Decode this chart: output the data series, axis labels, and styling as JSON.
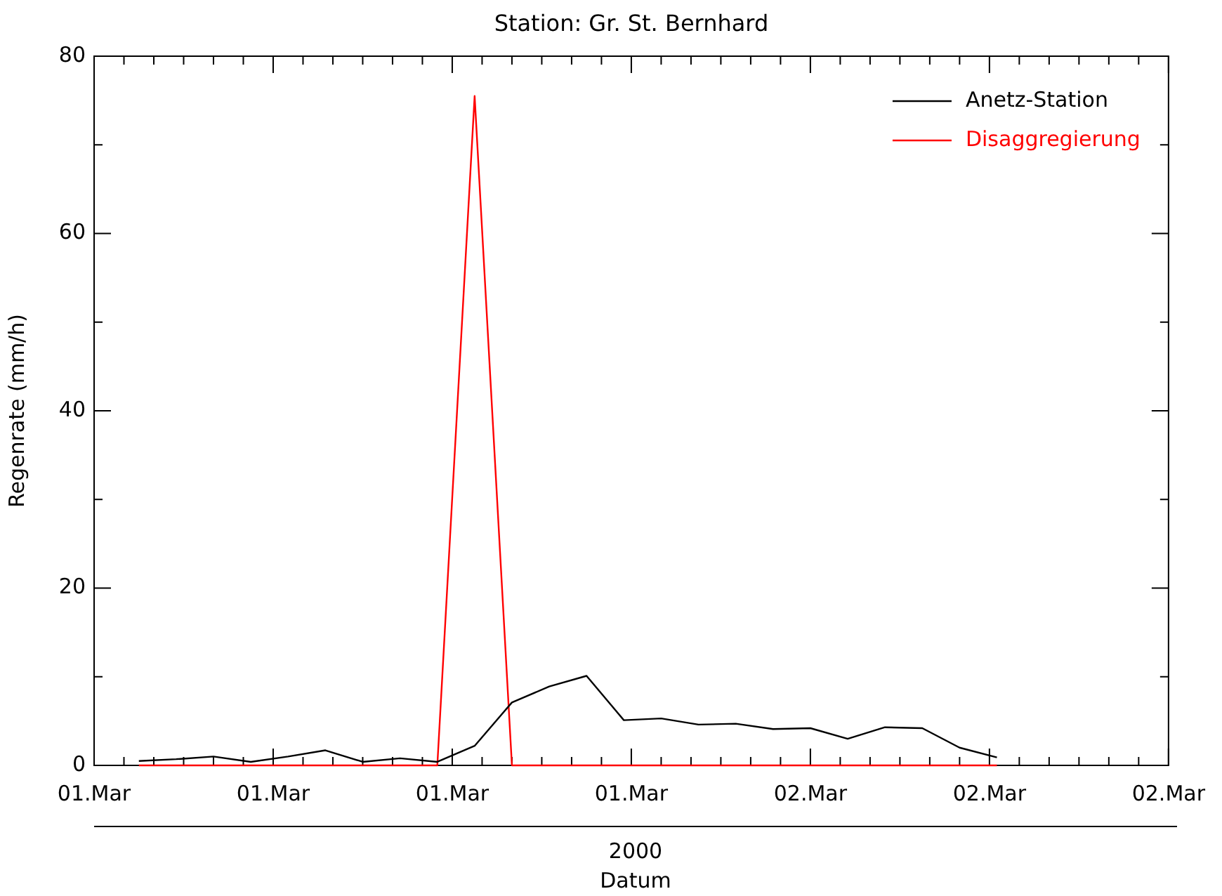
{
  "chart_data": {
    "type": "line",
    "title": "Station: Gr. St. Bernhard",
    "xlabel": "Datum",
    "ylabel": "Regenrate (mm/h)",
    "annotations": [
      "2000"
    ],
    "x": [
      "2000-03-01T04:30",
      "2000-03-01T05:45",
      "2000-03-01T07:00",
      "2000-03-01T08:15",
      "2000-03-01T09:30",
      "2000-03-01T10:45",
      "2000-03-01T12:00",
      "2000-03-01T13:15",
      "2000-03-01T14:30",
      "2000-03-01T15:45",
      "2000-03-01T17:00",
      "2000-03-01T18:15",
      "2000-03-01T19:30",
      "2000-03-01T20:45",
      "2000-03-01T22:00",
      "2000-03-01T23:15",
      "2000-03-02T00:30",
      "2000-03-02T01:45",
      "2000-03-02T03:00",
      "2000-03-02T04:15",
      "2000-03-02T05:30",
      "2000-03-02T06:45",
      "2000-03-02T08:00",
      "2000-03-02T09:15"
    ],
    "series": [
      {
        "name": "Anetz-Station",
        "color": "#000000",
        "values": [
          0.5,
          0.7,
          1.0,
          0.4,
          1.0,
          1.7,
          0.4,
          0.8,
          0.4,
          2.2,
          7.1,
          8.9,
          10.1,
          5.1,
          5.3,
          4.6,
          4.7,
          4.1,
          4.2,
          3.0,
          4.3,
          4.2,
          2.0,
          0.9
        ]
      },
      {
        "name": "Disaggregierung",
        "color": "#ff0000",
        "values": [
          0,
          0,
          0,
          0,
          0,
          0,
          0,
          0,
          0,
          75.5,
          0,
          0,
          0,
          0,
          0,
          0,
          0,
          0,
          0,
          0,
          0,
          0,
          0,
          0
        ]
      }
    ],
    "xlim": [
      "2000-03-01T03:00",
      "2000-03-02T15:00"
    ],
    "xticks": [
      {
        "value": "2000-03-01T03:00",
        "label": "01.Mar"
      },
      {
        "value": "2000-03-01T04:00",
        "label": null
      },
      {
        "value": "2000-03-01T05:00",
        "label": null
      },
      {
        "value": "2000-03-01T06:00",
        "label": null
      },
      {
        "value": "2000-03-01T07:00",
        "label": null
      },
      {
        "value": "2000-03-01T08:00",
        "label": null
      },
      {
        "value": "2000-03-01T09:00",
        "label": "01.Mar"
      },
      {
        "value": "2000-03-01T10:00",
        "label": null
      },
      {
        "value": "2000-03-01T11:00",
        "label": null
      },
      {
        "value": "2000-03-01T12:00",
        "label": null
      },
      {
        "value": "2000-03-01T13:00",
        "label": null
      },
      {
        "value": "2000-03-01T14:00",
        "label": null
      },
      {
        "value": "2000-03-01T15:00",
        "label": "01.Mar"
      },
      {
        "value": "2000-03-01T16:00",
        "label": null
      },
      {
        "value": "2000-03-01T17:00",
        "label": null
      },
      {
        "value": "2000-03-01T18:00",
        "label": null
      },
      {
        "value": "2000-03-01T19:00",
        "label": null
      },
      {
        "value": "2000-03-01T20:00",
        "label": null
      },
      {
        "value": "2000-03-01T21:00",
        "label": "01.Mar"
      },
      {
        "value": "2000-03-01T22:00",
        "label": null
      },
      {
        "value": "2000-03-01T23:00",
        "label": null
      },
      {
        "value": "2000-03-02T00:00",
        "label": null
      },
      {
        "value": "2000-03-02T01:00",
        "label": null
      },
      {
        "value": "2000-03-02T02:00",
        "label": null
      },
      {
        "value": "2000-03-02T03:00",
        "label": "02.Mar"
      },
      {
        "value": "2000-03-02T04:00",
        "label": null
      },
      {
        "value": "2000-03-02T05:00",
        "label": null
      },
      {
        "value": "2000-03-02T06:00",
        "label": null
      },
      {
        "value": "2000-03-02T07:00",
        "label": null
      },
      {
        "value": "2000-03-02T08:00",
        "label": null
      },
      {
        "value": "2000-03-02T09:00",
        "label": "02.Mar"
      },
      {
        "value": "2000-03-02T10:00",
        "label": null
      },
      {
        "value": "2000-03-02T11:00",
        "label": null
      },
      {
        "value": "2000-03-02T12:00",
        "label": null
      },
      {
        "value": "2000-03-02T13:00",
        "label": null
      },
      {
        "value": "2000-03-02T14:00",
        "label": null
      },
      {
        "value": "2000-03-02T15:00",
        "label": "02.Mar"
      }
    ],
    "ylim": [
      0,
      80
    ],
    "yticks": [
      0,
      {
        "value": 10,
        "label": null
      },
      20,
      {
        "value": 30,
        "label": null
      },
      40,
      {
        "value": 50,
        "label": null
      },
      60,
      {
        "value": 70,
        "label": null
      },
      80
    ],
    "grid": false,
    "legend": "top right",
    "marker": "none",
    "line_style": "solid"
  }
}
